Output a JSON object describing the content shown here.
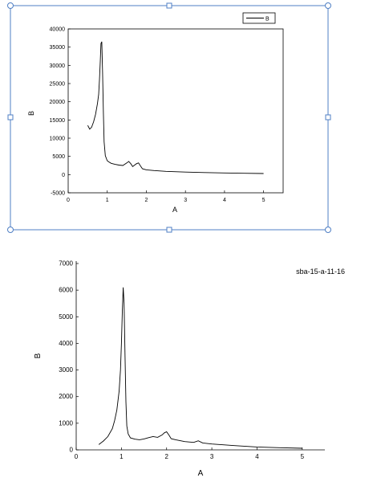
{
  "selection_color": "#4f7fc4",
  "chart_data": [
    {
      "type": "line",
      "xlabel": "A",
      "ylabel": "B",
      "xlim": [
        0,
        5.5
      ],
      "ylim": [
        -5000,
        40000
      ],
      "xticks": [
        "0",
        "1",
        "2",
        "3",
        "4",
        "5"
      ],
      "yticks": [
        "-5000",
        "0",
        "5000",
        "10000",
        "15000",
        "20000",
        "25000",
        "30000",
        "35000",
        "40000"
      ],
      "legend": {
        "position": "top-right",
        "entries": [
          "B"
        ]
      },
      "series": [
        {
          "name": "B",
          "x": [
            0.5,
            0.55,
            0.6,
            0.65,
            0.7,
            0.75,
            0.78,
            0.8,
            0.82,
            0.84,
            0.86,
            0.88,
            0.9,
            0.92,
            0.95,
            1.0,
            1.05,
            1.1,
            1.2,
            1.3,
            1.4,
            1.5,
            1.55,
            1.6,
            1.65,
            1.7,
            1.75,
            1.8,
            1.85,
            1.9,
            2.0,
            2.2,
            2.5,
            3.0,
            3.5,
            4.0,
            4.5,
            5.0
          ],
          "y": [
            13500,
            12500,
            13000,
            14500,
            16500,
            19500,
            22000,
            26000,
            31000,
            36000,
            36500,
            28000,
            17000,
            9000,
            5200,
            3800,
            3400,
            3100,
            2800,
            2600,
            2500,
            3200,
            3600,
            3000,
            2200,
            2600,
            3000,
            3200,
            2400,
            1600,
            1300,
            1100,
            900,
            700,
            550,
            450,
            350,
            300
          ]
        }
      ]
    },
    {
      "type": "line",
      "xlabel": "A",
      "ylabel": "B",
      "xlim": [
        0,
        5.5
      ],
      "ylim": [
        0,
        7000
      ],
      "xticks": [
        "0",
        "1",
        "2",
        "3",
        "4",
        "5"
      ],
      "yticks": [
        "0",
        "1000",
        "2000",
        "3000",
        "4000",
        "5000",
        "6000",
        "7000"
      ],
      "annotation": "sba-15-a-11-16",
      "series": [
        {
          "x": [
            0.5,
            0.6,
            0.7,
            0.8,
            0.85,
            0.9,
            0.95,
            0.98,
            1.0,
            1.02,
            1.04,
            1.06,
            1.08,
            1.1,
            1.12,
            1.15,
            1.2,
            1.3,
            1.4,
            1.5,
            1.6,
            1.7,
            1.8,
            1.9,
            1.95,
            2.0,
            2.05,
            2.1,
            2.2,
            2.4,
            2.6,
            2.7,
            2.8,
            3.0,
            3.5,
            4.0,
            4.5,
            5.0
          ],
          "y": [
            200,
            330,
            500,
            800,
            1100,
            1500,
            2200,
            3000,
            4000,
            5200,
            6100,
            5500,
            3500,
            1800,
            900,
            600,
            450,
            400,
            380,
            410,
            460,
            500,
            470,
            560,
            640,
            680,
            560,
            420,
            380,
            310,
            280,
            340,
            260,
            220,
            160,
            110,
            80,
            60
          ]
        }
      ]
    }
  ]
}
